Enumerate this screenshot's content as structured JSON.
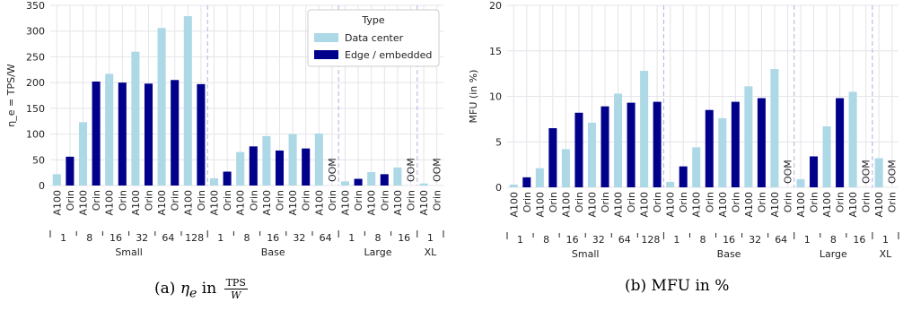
{
  "colors": {
    "data_center": "#add8e6",
    "edge": "#00008b",
    "grid": "#e4e4ea",
    "separator": "#b0b0e0"
  },
  "captions": {
    "a_prefix": "(a)",
    "a_symbol": "η",
    "a_sub": "e",
    "a_mid": "in",
    "a_num": "TPS",
    "a_den": "W",
    "b": "(b) MFU in %"
  },
  "chart_data": [
    {
      "type": "bar",
      "panel": "a",
      "ylabel": "η_e = TPS/W",
      "ylim": [
        0,
        350
      ],
      "yticks": [
        0,
        50,
        100,
        150,
        200,
        250,
        300,
        350
      ],
      "grid": true,
      "legend": {
        "title": "Type",
        "position": "top-right",
        "entries": [
          {
            "label": "Data center",
            "color_key": "data_center"
          },
          {
            "label": "Edge / embedded",
            "color_key": "edge"
          }
        ]
      },
      "groups": [
        {
          "name": "Small",
          "batches": [
            {
              "batch": "1",
              "bars": [
                {
                  "device": "A100",
                  "value": 22
                },
                {
                  "device": "Orin",
                  "value": 56
                }
              ]
            },
            {
              "batch": "8",
              "bars": [
                {
                  "device": "A100",
                  "value": 123
                },
                {
                  "device": "Orin",
                  "value": 202
                }
              ]
            },
            {
              "batch": "16",
              "bars": [
                {
                  "device": "A100",
                  "value": 217
                },
                {
                  "device": "Orin",
                  "value": 200
                }
              ]
            },
            {
              "batch": "32",
              "bars": [
                {
                  "device": "A100",
                  "value": 260
                },
                {
                  "device": "Orin",
                  "value": 198
                }
              ]
            },
            {
              "batch": "64",
              "bars": [
                {
                  "device": "A100",
                  "value": 306
                },
                {
                  "device": "Orin",
                  "value": 205
                }
              ]
            },
            {
              "batch": "128",
              "bars": [
                {
                  "device": "A100",
                  "value": 329
                },
                {
                  "device": "Orin",
                  "value": 197
                }
              ]
            }
          ]
        },
        {
          "name": "Base",
          "batches": [
            {
              "batch": "1",
              "bars": [
                {
                  "device": "A100",
                  "value": 14
                },
                {
                  "device": "Orin",
                  "value": 27
                }
              ]
            },
            {
              "batch": "8",
              "bars": [
                {
                  "device": "A100",
                  "value": 65
                },
                {
                  "device": "Orin",
                  "value": 76
                }
              ]
            },
            {
              "batch": "16",
              "bars": [
                {
                  "device": "A100",
                  "value": 96
                },
                {
                  "device": "Orin",
                  "value": 68
                }
              ]
            },
            {
              "batch": "32",
              "bars": [
                {
                  "device": "A100",
                  "value": 100
                },
                {
                  "device": "Orin",
                  "value": 72
                }
              ]
            },
            {
              "batch": "64",
              "bars": [
                {
                  "device": "A100",
                  "value": 101
                },
                {
                  "device": "Orin",
                  "value": null,
                  "note": "OOM"
                }
              ]
            }
          ]
        },
        {
          "name": "Large",
          "batches": [
            {
              "batch": "1",
              "bars": [
                {
                  "device": "A100",
                  "value": 8
                },
                {
                  "device": "Orin",
                  "value": 13
                }
              ]
            },
            {
              "batch": "8",
              "bars": [
                {
                  "device": "A100",
                  "value": 26
                },
                {
                  "device": "Orin",
                  "value": 22
                }
              ]
            },
            {
              "batch": "16",
              "bars": [
                {
                  "device": "A100",
                  "value": 35
                },
                {
                  "device": "Orin",
                  "value": null,
                  "note": "OOM"
                }
              ]
            }
          ]
        },
        {
          "name": "XL",
          "batches": [
            {
              "batch": "1",
              "bars": [
                {
                  "device": "A100",
                  "value": 4
                },
                {
                  "device": "Orin",
                  "value": null,
                  "note": "OOM"
                }
              ]
            }
          ]
        }
      ]
    },
    {
      "type": "bar",
      "panel": "b",
      "ylabel": "MFU (in %)",
      "ylim": [
        0,
        20
      ],
      "yticks": [
        0,
        5,
        10,
        15,
        20
      ],
      "grid": true,
      "groups": [
        {
          "name": "Small",
          "batches": [
            {
              "batch": "1",
              "bars": [
                {
                  "device": "A100",
                  "value": 0.3
                },
                {
                  "device": "Orin",
                  "value": 1.1
                }
              ]
            },
            {
              "batch": "8",
              "bars": [
                {
                  "device": "A100",
                  "value": 2.1
                },
                {
                  "device": "Orin",
                  "value": 6.5
                }
              ]
            },
            {
              "batch": "16",
              "bars": [
                {
                  "device": "A100",
                  "value": 4.2
                },
                {
                  "device": "Orin",
                  "value": 8.2
                }
              ]
            },
            {
              "batch": "32",
              "bars": [
                {
                  "device": "A100",
                  "value": 7.1
                },
                {
                  "device": "Orin",
                  "value": 8.9
                }
              ]
            },
            {
              "batch": "64",
              "bars": [
                {
                  "device": "A100",
                  "value": 10.3
                },
                {
                  "device": "Orin",
                  "value": 9.3
                }
              ]
            },
            {
              "batch": "128",
              "bars": [
                {
                  "device": "A100",
                  "value": 12.8
                },
                {
                  "device": "Orin",
                  "value": 9.4
                }
              ]
            }
          ]
        },
        {
          "name": "Base",
          "batches": [
            {
              "batch": "1",
              "bars": [
                {
                  "device": "A100",
                  "value": 0.6
                },
                {
                  "device": "Orin",
                  "value": 2.3
                }
              ]
            },
            {
              "batch": "8",
              "bars": [
                {
                  "device": "A100",
                  "value": 4.4
                },
                {
                  "device": "Orin",
                  "value": 8.5
                }
              ]
            },
            {
              "batch": "16",
              "bars": [
                {
                  "device": "A100",
                  "value": 7.6
                },
                {
                  "device": "Orin",
                  "value": 9.4
                }
              ]
            },
            {
              "batch": "32",
              "bars": [
                {
                  "device": "A100",
                  "value": 11.1
                },
                {
                  "device": "Orin",
                  "value": 9.8
                }
              ]
            },
            {
              "batch": "64",
              "bars": [
                {
                  "device": "A100",
                  "value": 13.0
                },
                {
                  "device": "Orin",
                  "value": null,
                  "note": "OOM"
                }
              ]
            }
          ]
        },
        {
          "name": "Large",
          "batches": [
            {
              "batch": "1",
              "bars": [
                {
                  "device": "A100",
                  "value": 0.9
                },
                {
                  "device": "Orin",
                  "value": 3.4
                }
              ]
            },
            {
              "batch": "8",
              "bars": [
                {
                  "device": "A100",
                  "value": 6.7
                },
                {
                  "device": "Orin",
                  "value": 9.8
                }
              ]
            },
            {
              "batch": "16",
              "bars": [
                {
                  "device": "A100",
                  "value": 10.5
                },
                {
                  "device": "Orin",
                  "value": null,
                  "note": "OOM"
                }
              ]
            }
          ]
        },
        {
          "name": "XL",
          "batches": [
            {
              "batch": "1",
              "bars": [
                {
                  "device": "A100",
                  "value": 3.2
                },
                {
                  "device": "Orin",
                  "value": null,
                  "note": "OOM"
                }
              ]
            }
          ]
        }
      ]
    }
  ]
}
